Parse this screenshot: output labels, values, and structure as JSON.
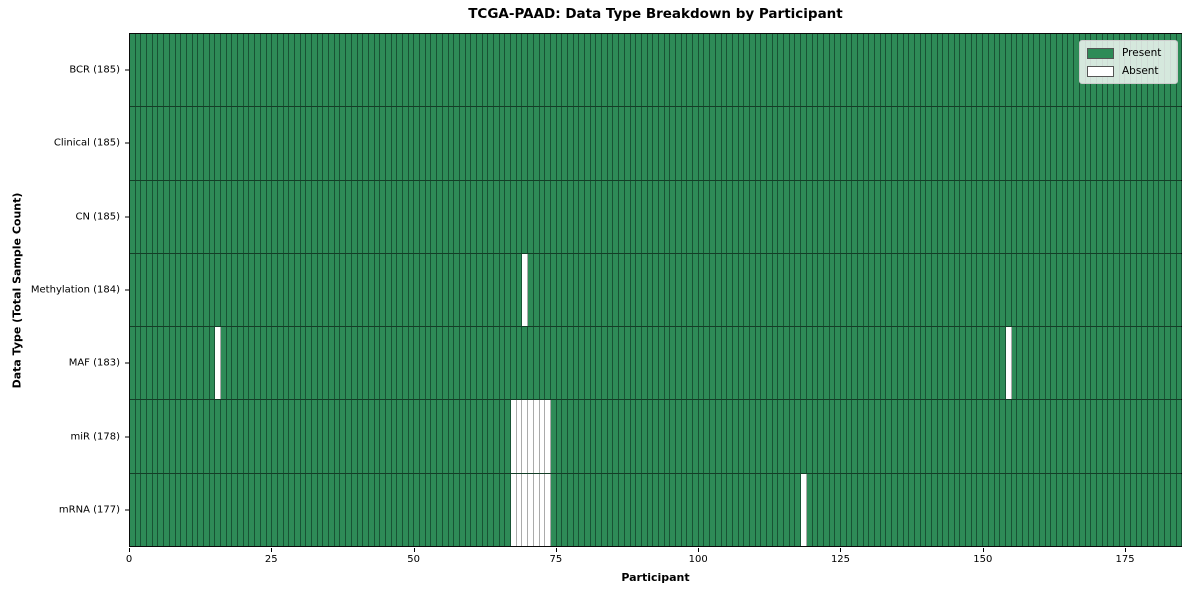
{
  "title": "TCGA-PAAD: Data Type Breakdown by Participant",
  "chart_data": {
    "type": "heatmap",
    "title": "TCGA-PAAD: Data Type Breakdown by Participant",
    "xlabel": "Participant",
    "ylabel": "Data Type (Total Sample Count)",
    "n_participants": 185,
    "x_range": [
      0,
      185
    ],
    "x_ticks": [
      0,
      25,
      50,
      75,
      100,
      125,
      150,
      175
    ],
    "grid": "cell-borders",
    "legend": {
      "position": "upper-right",
      "entries": [
        {
          "label": "Present",
          "color": "#2e8b57"
        },
        {
          "label": "Absent",
          "color": "#ffffff"
        }
      ]
    },
    "colors": {
      "present": "#2e8b57",
      "absent": "#ffffff"
    },
    "rows": [
      {
        "label": "BCR (185)",
        "total_samples": 185,
        "absent_participants": []
      },
      {
        "label": "Clinical (185)",
        "total_samples": 185,
        "absent_participants": []
      },
      {
        "label": "CN (185)",
        "total_samples": 185,
        "absent_participants": []
      },
      {
        "label": "Methylation (184)",
        "total_samples": 184,
        "absent_participants": [
          69
        ]
      },
      {
        "label": "MAF (183)",
        "total_samples": 183,
        "absent_participants": [
          15,
          154
        ]
      },
      {
        "label": "miR (178)",
        "total_samples": 178,
        "absent_participants": [
          67,
          68,
          69,
          70,
          71,
          72,
          73
        ]
      },
      {
        "label": "mRNA (177)",
        "total_samples": 177,
        "absent_participants": [
          67,
          68,
          69,
          70,
          71,
          72,
          73,
          118
        ]
      }
    ]
  }
}
